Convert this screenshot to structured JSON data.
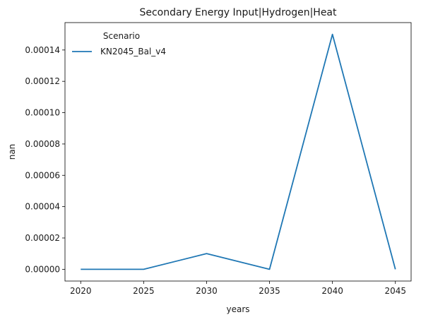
{
  "chart_data": {
    "type": "line",
    "title": "Secondary Energy Input|Hydrogen|Heat",
    "xlabel": "years",
    "ylabel": "nan",
    "x": [
      2020,
      2025,
      2030,
      2035,
      2040,
      2045
    ],
    "xticks": [
      "2020",
      "2025",
      "2030",
      "2035",
      "2040",
      "2045"
    ],
    "yticks": [
      "0.00000",
      "0.00002",
      "0.00004",
      "0.00006",
      "0.00008",
      "0.00010",
      "0.00012",
      "0.00014"
    ],
    "xlim": [
      2018.75,
      2046.25
    ],
    "ylim": [
      -7.5e-06,
      0.0001575
    ],
    "grid": false,
    "legend": {
      "title": "Scenario",
      "placement": "top-left"
    },
    "series": [
      {
        "name": "KN2045_Bal_v4",
        "color": "#1f77b4",
        "values": [
          0,
          0,
          1e-05,
          0,
          0.00015,
          0
        ]
      }
    ]
  }
}
